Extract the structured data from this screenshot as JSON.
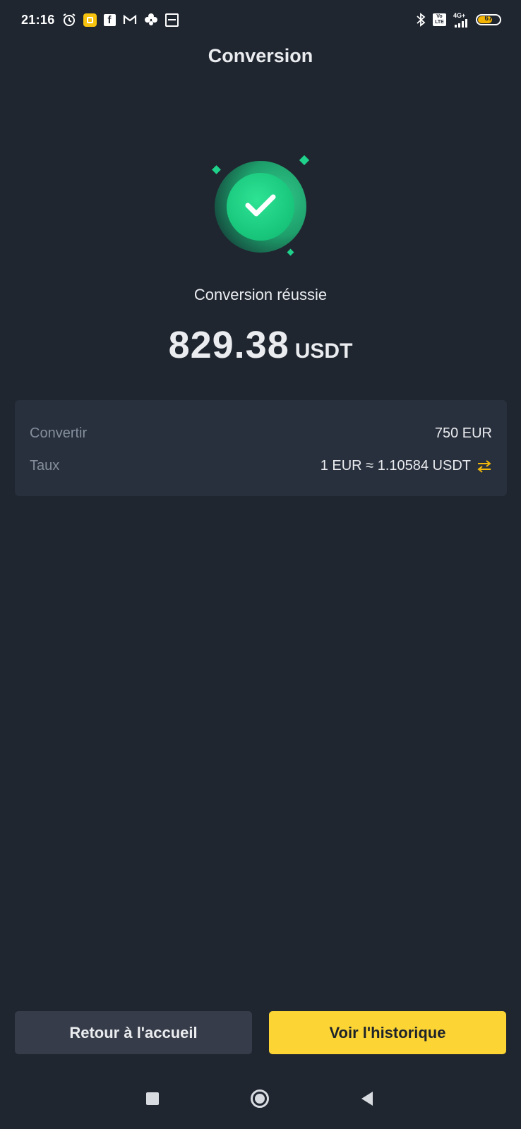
{
  "status_bar": {
    "time": "21:16",
    "network": "4G+",
    "volte": "Vo LTE",
    "battery_level": "67",
    "icons_left": [
      "alarm-icon",
      "yellow-app-icon",
      "facebook-icon",
      "gmail-icon",
      "clover-icon",
      "minus-box-icon"
    ],
    "icons_right": [
      "bluetooth-icon",
      "volte-icon",
      "signal-icon",
      "battery-icon"
    ]
  },
  "header": {
    "title": "Conversion"
  },
  "result": {
    "status_text": "Conversion réussie",
    "amount": "829.38",
    "currency": "USDT",
    "accent_color": "#17c47a"
  },
  "details": {
    "rows": [
      {
        "label": "Convertir",
        "value": "750 EUR"
      },
      {
        "label": "Taux",
        "value": "1 EUR ≈ 1.10584 USDT"
      }
    ],
    "swap_icon": "swap-arrows-icon",
    "swap_icon_color": "#f0b90b"
  },
  "actions": {
    "home_label": "Retour à l'accueil",
    "history_label": "Voir l'historique",
    "primary_color": "#fcd535"
  },
  "nav": {
    "buttons": [
      "recents-square-icon",
      "home-circle-icon",
      "back-triangle-icon"
    ]
  }
}
